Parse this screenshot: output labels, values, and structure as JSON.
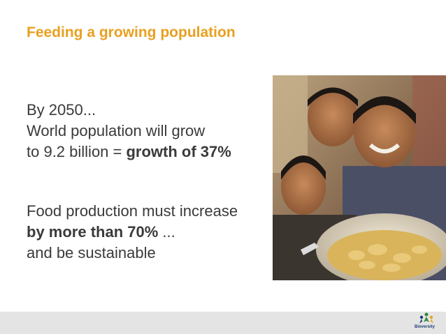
{
  "slide": {
    "title": "Feeding a growing population",
    "block1": {
      "line1": "By 2050...",
      "line2": "World population will grow",
      "line3_prefix": "to 9.2 billion = ",
      "line3_bold": "growth of 37%"
    },
    "block2": {
      "line1": "Food production must increase",
      "line2_bold": "by more than 70%",
      "line2_suffix": " ...",
      "line3": "and be sustainable"
    }
  },
  "footer": {
    "logo_name": "Bioversity",
    "logo_icon": "people-leaf-logo-icon"
  },
  "colors": {
    "title": "#e8a020",
    "body_text": "#3a3a3a",
    "footer_bar": "#e4e4e4"
  }
}
